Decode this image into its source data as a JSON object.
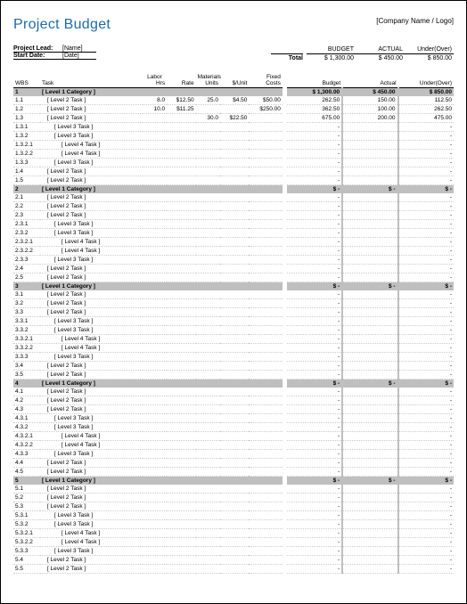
{
  "header": {
    "title": "Project Budget",
    "company": "[Company Name / Logo]",
    "project_lead_lbl": "Project Lead:",
    "project_lead_val": "[Name]",
    "start_date_lbl": "Start Date:",
    "start_date_val": "[Date]"
  },
  "totals": {
    "total_lbl": "Total",
    "budget_lbl": "BUDGET",
    "actual_lbl": "ACTUAL",
    "under_lbl": "Under(Over)",
    "budget_val": "$   1,300.00",
    "actual_val": "$      450.00",
    "under_val": "$      850.00"
  },
  "cols": {
    "wbs": "WBS",
    "task": "Task",
    "labor": "Labor",
    "hrs": "Hrs",
    "rate": "Rate",
    "materials": "Materials",
    "units": "Units",
    "punit": "$/Unit",
    "fixed": "Fixed\nCosts",
    "budget": "Budget",
    "actual": "Actual",
    "under": "Under(Over)"
  },
  "rows": [
    {
      "t": "cat",
      "wbs": "1",
      "task": "[ Level 1 Category ]",
      "budget": "$   1,300.00",
      "actual": "$      450.00",
      "under": "$      850.00"
    },
    {
      "t": "r",
      "wbs": "1.1",
      "ind": 1,
      "task": "[ Level 2 Task ]",
      "hrs": "8.0",
      "rate": "$12.50",
      "units": "25.0",
      "punit": "$4.50",
      "fixed": "$50.00",
      "budget": "262.50",
      "actual": "150.00",
      "under": "112.50"
    },
    {
      "t": "r",
      "wbs": "1.2",
      "ind": 1,
      "task": "[ Level 2 Task ]",
      "hrs": "10.0",
      "rate": "$11.25",
      "units": "",
      "punit": "",
      "fixed": "$250.00",
      "budget": "362.50",
      "actual": "100.00",
      "under": "262.50"
    },
    {
      "t": "r",
      "wbs": "1.3",
      "ind": 1,
      "task": "[ Level 2 Task ]",
      "hrs": "",
      "rate": "",
      "units": "30.0",
      "punit": "$22.50",
      "fixed": "",
      "budget": "675.00",
      "actual": "200.00",
      "under": "475.00"
    },
    {
      "t": "r",
      "wbs": "1.3.1",
      "ind": 2,
      "task": "[ Level 3 Task ]",
      "budget": "-",
      "actual": "",
      "under": "-"
    },
    {
      "t": "r",
      "wbs": "1.3.2",
      "ind": 2,
      "task": "[ Level 3 Task ]",
      "budget": "-",
      "actual": "",
      "under": "-"
    },
    {
      "t": "r",
      "wbs": "1.3.2.1",
      "ind": 3,
      "task": "[ Level 4 Task ]",
      "budget": "-",
      "actual": "",
      "under": "-"
    },
    {
      "t": "r",
      "wbs": "1.3.2.2",
      "ind": 3,
      "task": "[ Level 4 Task ]",
      "budget": "-",
      "actual": "",
      "under": "-"
    },
    {
      "t": "r",
      "wbs": "1.3.3",
      "ind": 2,
      "task": "[ Level 3 Task ]",
      "budget": "-",
      "actual": "",
      "under": "-"
    },
    {
      "t": "r",
      "wbs": "1.4",
      "ind": 1,
      "task": "[ Level 2 Task ]",
      "budget": "-",
      "actual": "",
      "under": "-"
    },
    {
      "t": "r",
      "wbs": "1.5",
      "ind": 1,
      "task": "[ Level 2 Task ]",
      "budget": "-",
      "actual": "",
      "under": "-"
    },
    {
      "t": "cat",
      "wbs": "2",
      "task": "[ Level 1 Category ]",
      "budget": "$            -",
      "actual": "$            -",
      "under": "$            -"
    },
    {
      "t": "r",
      "wbs": "2.1",
      "ind": 1,
      "task": "[ Level 2 Task ]",
      "budget": "-",
      "actual": "",
      "under": "-"
    },
    {
      "t": "r",
      "wbs": "2.2",
      "ind": 1,
      "task": "[ Level 2 Task ]",
      "budget": "-",
      "actual": "",
      "under": "-"
    },
    {
      "t": "r",
      "wbs": "2.3",
      "ind": 1,
      "task": "[ Level 2 Task ]",
      "budget": "-",
      "actual": "",
      "under": "-"
    },
    {
      "t": "r",
      "wbs": "2.3.1",
      "ind": 2,
      "task": "[ Level 3 Task ]",
      "budget": "-",
      "actual": "",
      "under": "-"
    },
    {
      "t": "r",
      "wbs": "2.3.2",
      "ind": 2,
      "task": "[ Level 3 Task ]",
      "budget": "-",
      "actual": "",
      "under": "-"
    },
    {
      "t": "r",
      "wbs": "2.3.2.1",
      "ind": 3,
      "task": "[ Level 4 Task ]",
      "budget": "-",
      "actual": "",
      "under": "-"
    },
    {
      "t": "r",
      "wbs": "2.3.2.2",
      "ind": 3,
      "task": "[ Level 4 Task ]",
      "budget": "-",
      "actual": "",
      "under": "-"
    },
    {
      "t": "r",
      "wbs": "2.3.3",
      "ind": 2,
      "task": "[ Level 3 Task ]",
      "budget": "-",
      "actual": "",
      "under": "-"
    },
    {
      "t": "r",
      "wbs": "2.4",
      "ind": 1,
      "task": "[ Level 2 Task ]",
      "budget": "-",
      "actual": "",
      "under": "-"
    },
    {
      "t": "r",
      "wbs": "2.5",
      "ind": 1,
      "task": "[ Level 2 Task ]",
      "budget": "-",
      "actual": "",
      "under": "-"
    },
    {
      "t": "cat",
      "wbs": "3",
      "task": "[ Level 1 Category ]",
      "budget": "$            -",
      "actual": "$            -",
      "under": "$            -"
    },
    {
      "t": "r",
      "wbs": "3.1",
      "ind": 1,
      "task": "[ Level 2 Task ]",
      "budget": "-",
      "actual": "",
      "under": "-"
    },
    {
      "t": "r",
      "wbs": "3.2",
      "ind": 1,
      "task": "[ Level 2 Task ]",
      "budget": "-",
      "actual": "",
      "under": "-"
    },
    {
      "t": "r",
      "wbs": "3.3",
      "ind": 1,
      "task": "[ Level 2 Task ]",
      "budget": "-",
      "actual": "",
      "under": "-"
    },
    {
      "t": "r",
      "wbs": "3.3.1",
      "ind": 2,
      "task": "[ Level 3 Task ]",
      "budget": "-",
      "actual": "",
      "under": "-"
    },
    {
      "t": "r",
      "wbs": "3.3.2",
      "ind": 2,
      "task": "[ Level 3 Task ]",
      "budget": "-",
      "actual": "",
      "under": "-"
    },
    {
      "t": "r",
      "wbs": "3.3.2.1",
      "ind": 3,
      "task": "[ Level 4 Task ]",
      "budget": "-",
      "actual": "",
      "under": "-"
    },
    {
      "t": "r",
      "wbs": "3.3.2.2",
      "ind": 3,
      "task": "[ Level 4 Task ]",
      "budget": "-",
      "actual": "",
      "under": "-"
    },
    {
      "t": "r",
      "wbs": "3.3.3",
      "ind": 2,
      "task": "[ Level 3 Task ]",
      "budget": "-",
      "actual": "",
      "under": "-"
    },
    {
      "t": "r",
      "wbs": "3.4",
      "ind": 1,
      "task": "[ Level 2 Task ]",
      "budget": "-",
      "actual": "",
      "under": "-"
    },
    {
      "t": "r",
      "wbs": "3.5",
      "ind": 1,
      "task": "[ Level 2 Task ]",
      "budget": "-",
      "actual": "",
      "under": "-"
    },
    {
      "t": "cat",
      "wbs": "4",
      "task": "[ Level 1 Category ]",
      "budget": "$            -",
      "actual": "$            -",
      "under": "$            -"
    },
    {
      "t": "r",
      "wbs": "4.1",
      "ind": 1,
      "task": "[ Level 2 Task ]",
      "budget": "-",
      "actual": "",
      "under": "-"
    },
    {
      "t": "r",
      "wbs": "4.2",
      "ind": 1,
      "task": "[ Level 2 Task ]",
      "budget": "-",
      "actual": "",
      "under": "-"
    },
    {
      "t": "r",
      "wbs": "4.3",
      "ind": 1,
      "task": "[ Level 2 Task ]",
      "budget": "-",
      "actual": "",
      "under": "-"
    },
    {
      "t": "r",
      "wbs": "4.3.1",
      "ind": 2,
      "task": "[ Level 3 Task ]",
      "budget": "-",
      "actual": "",
      "under": "-"
    },
    {
      "t": "r",
      "wbs": "4.3.2",
      "ind": 2,
      "task": "[ Level 3 Task ]",
      "budget": "-",
      "actual": "",
      "under": "-"
    },
    {
      "t": "r",
      "wbs": "4.3.2.1",
      "ind": 3,
      "task": "[ Level 4 Task ]",
      "budget": "-",
      "actual": "",
      "under": "-"
    },
    {
      "t": "r",
      "wbs": "4.3.2.2",
      "ind": 3,
      "task": "[ Level 4 Task ]",
      "budget": "-",
      "actual": "",
      "under": "-"
    },
    {
      "t": "r",
      "wbs": "4.3.3",
      "ind": 2,
      "task": "[ Level 3 Task ]",
      "budget": "-",
      "actual": "",
      "under": "-"
    },
    {
      "t": "r",
      "wbs": "4.4",
      "ind": 1,
      "task": "[ Level 2 Task ]",
      "budget": "-",
      "actual": "",
      "under": "-"
    },
    {
      "t": "r",
      "wbs": "4.5",
      "ind": 1,
      "task": "[ Level 2 Task ]",
      "budget": "-",
      "actual": "",
      "under": "-"
    },
    {
      "t": "cat",
      "wbs": "5",
      "task": "[ Level 1 Category ]",
      "budget": "$            -",
      "actual": "$            -",
      "under": "$            -"
    },
    {
      "t": "r",
      "wbs": "5.1",
      "ind": 1,
      "task": "[ Level 2 Task ]",
      "budget": "-",
      "actual": "",
      "under": "-"
    },
    {
      "t": "r",
      "wbs": "5.2",
      "ind": 1,
      "task": "[ Level 2 Task ]",
      "budget": "-",
      "actual": "",
      "under": "-"
    },
    {
      "t": "r",
      "wbs": "5.3",
      "ind": 1,
      "task": "[ Level 2 Task ]",
      "budget": "-",
      "actual": "",
      "under": "-"
    },
    {
      "t": "r",
      "wbs": "5.3.1",
      "ind": 2,
      "task": "[ Level 3 Task ]",
      "budget": "-",
      "actual": "",
      "under": "-"
    },
    {
      "t": "r",
      "wbs": "5.3.2",
      "ind": 2,
      "task": "[ Level 3 Task ]",
      "budget": "-",
      "actual": "",
      "under": "-"
    },
    {
      "t": "r",
      "wbs": "5.3.2.1",
      "ind": 3,
      "task": "[ Level 4 Task ]",
      "budget": "-",
      "actual": "",
      "under": "-"
    },
    {
      "t": "r",
      "wbs": "5.3.2.2",
      "ind": 3,
      "task": "[ Level 4 Task ]",
      "budget": "-",
      "actual": "",
      "under": "-"
    },
    {
      "t": "r",
      "wbs": "5.3.3",
      "ind": 2,
      "task": "[ Level 3 Task ]",
      "budget": "-",
      "actual": "",
      "under": "-"
    },
    {
      "t": "r",
      "wbs": "5.4",
      "ind": 1,
      "task": "[ Level 2 Task ]",
      "budget": "-",
      "actual": "",
      "under": "-"
    },
    {
      "t": "r",
      "wbs": "5.5",
      "ind": 1,
      "task": "[ Level 2 Task ]",
      "budget": "-",
      "actual": "",
      "under": "-"
    }
  ]
}
